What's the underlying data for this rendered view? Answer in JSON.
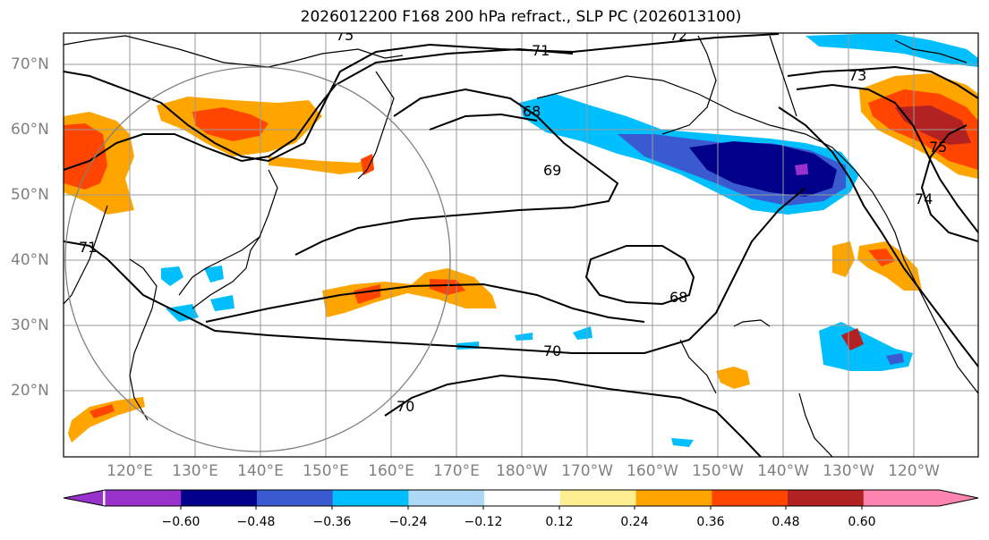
{
  "title": "2026012200 F168 200 hPa refract., SLP PC (2026013100)",
  "lat_labels": [
    "70°N",
    "60°N",
    "50°N",
    "40°N",
    "30°N",
    "20°N"
  ],
  "lon_labels": [
    "120°E",
    "130°E",
    "140°E",
    "150°E",
    "160°E",
    "170°E",
    "180°W",
    "170°W",
    "160°W",
    "150°W",
    "140°W",
    "130°W",
    "120°W"
  ],
  "contour_labels": [
    "75",
    "72",
    "71",
    "73",
    "68",
    "69",
    "75",
    "74",
    "71",
    "68",
    "70",
    "70"
  ],
  "colorbar": {
    "ticks": [
      "−0.60",
      "−0.48",
      "−0.36",
      "−0.24",
      "−0.12",
      "0.12",
      "0.24",
      "0.36",
      "0.48",
      "0.60"
    ],
    "colors": [
      "#9932cc",
      "#00008b",
      "#3a5bcf",
      "#00bfff",
      "#add8f6",
      "#ffffff",
      "#ffee8f",
      "#ffa500",
      "#ff4500",
      "#b22222",
      "#ff85b1"
    ]
  },
  "colors": {
    "contour": "#000000",
    "coast": "#000000",
    "grid": "#9a9a9a",
    "circle": "#808080",
    "labels": "#808080"
  }
}
